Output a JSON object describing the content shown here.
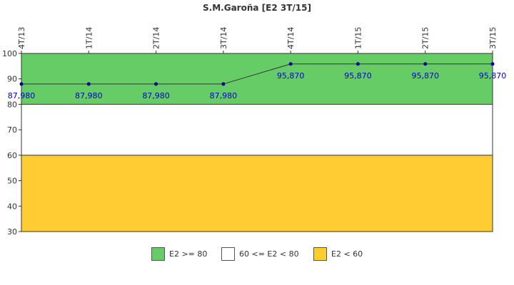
{
  "chart_data": {
    "type": "line",
    "title": "S.M.Garoña [E2 3T/15]",
    "xlabel": "",
    "ylabel": "",
    "categories": [
      "4T/13",
      "1T/14",
      "2T/14",
      "3T/14",
      "4T/14",
      "1T/15",
      "2T/15",
      "3T/15"
    ],
    "series": [
      {
        "values": [
          87.98,
          87.98,
          87.98,
          87.98,
          95.87,
          95.87,
          95.87,
          95.87
        ],
        "labels": [
          "87,980",
          "87,980",
          "87,980",
          "87,980",
          "95,870",
          "95,870",
          "95,870",
          "95,870"
        ]
      }
    ],
    "ylim": [
      30,
      100
    ],
    "yticks": [
      30,
      40,
      50,
      60,
      70,
      80,
      90,
      100
    ],
    "bands": [
      {
        "label": "E2 >= 80",
        "from": 80,
        "to": 100,
        "color": "#66cc66"
      },
      {
        "label": "60 <= E2 < 80",
        "from": 60,
        "to": 80,
        "color": "#ffffff"
      },
      {
        "label": "E2 < 60",
        "from": 30,
        "to": 60,
        "color": "#ffcc33"
      }
    ],
    "line_color": "#333333",
    "marker_color": "#000099",
    "label_color": "#0000cc",
    "grid": false,
    "legend_position": "bottom"
  }
}
